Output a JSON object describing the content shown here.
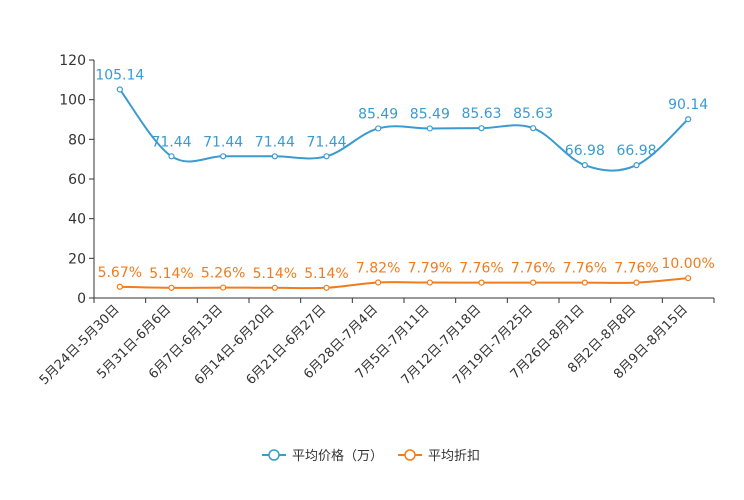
{
  "chart_data": {
    "type": "line",
    "categories": [
      "5月24日-5月30日",
      "5月31日-6月6日",
      "6月7日-6月13日",
      "6月14日-6月20日",
      "6月21日-6月27日",
      "6月28日-7月4日",
      "7月5日-7月11日",
      "7月12日-7月18日",
      "7月19日-7月25日",
      "7月26日-8月1日",
      "8月2日-8月8日",
      "8月9日-8月15日"
    ],
    "ylim": [
      0,
      120
    ],
    "yticks": [
      0,
      20,
      40,
      60,
      80,
      100,
      120
    ],
    "series": [
      {
        "name": "平均价格（万）",
        "color": "#3a9bd0",
        "values": [
          105.14,
          71.44,
          71.44,
          71.44,
          71.44,
          85.49,
          85.49,
          85.63,
          85.63,
          66.98,
          66.98,
          90.14
        ],
        "labels": [
          "105.14",
          "71.44",
          "71.44",
          "71.44",
          "71.44",
          "85.49",
          "85.49",
          "85.63",
          "85.63",
          "66.98",
          "66.98",
          "90.14"
        ]
      },
      {
        "name": "平均折扣",
        "color": "#f07c1e",
        "values": [
          5.67,
          5.14,
          5.26,
          5.14,
          5.14,
          7.82,
          7.79,
          7.76,
          7.76,
          7.76,
          7.76,
          10.0
        ],
        "labels": [
          "5.67%",
          "5.14%",
          "5.26%",
          "5.14%",
          "5.14%",
          "7.82%",
          "7.79%",
          "7.76%",
          "7.76%",
          "7.76%",
          "7.76%",
          "10.00%"
        ]
      }
    ],
    "legend_position": "bottom-center"
  }
}
